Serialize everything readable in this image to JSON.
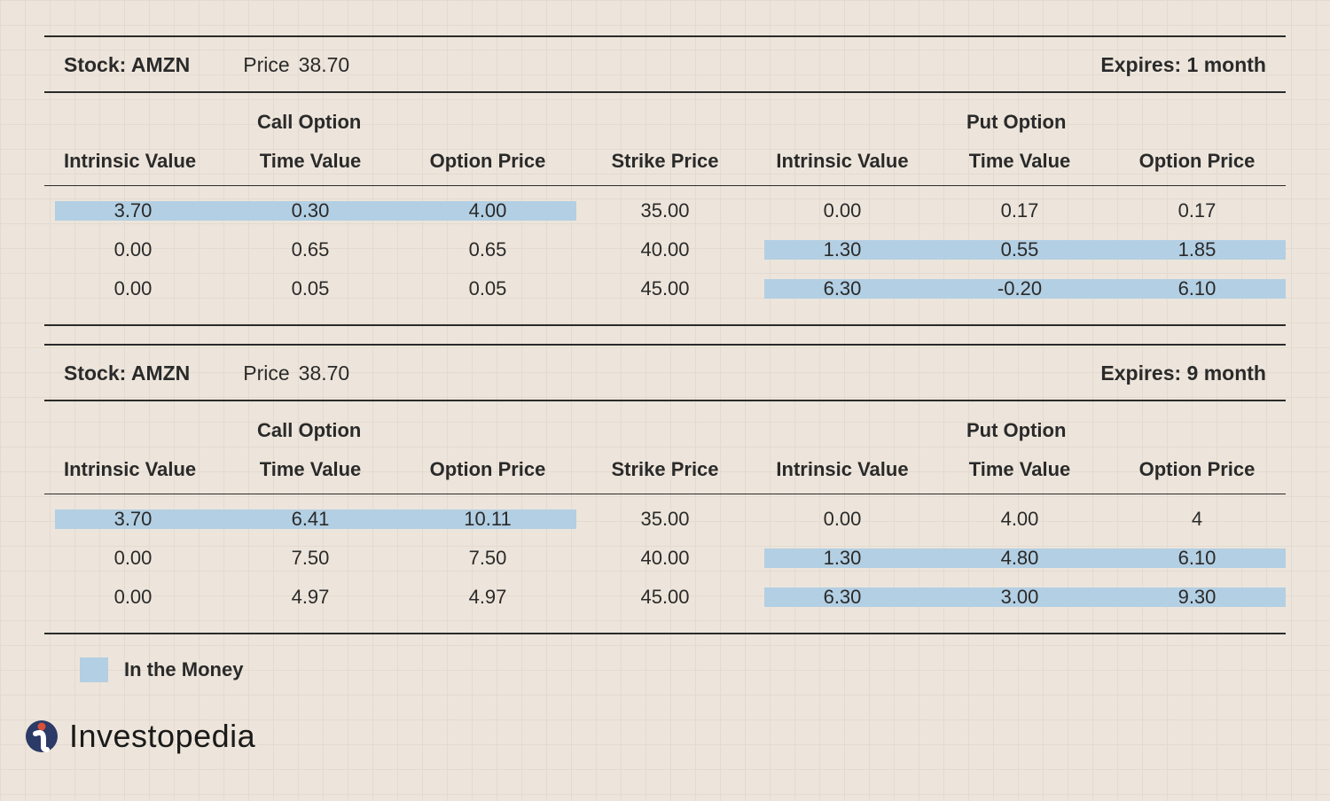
{
  "background_color": "#ede5db",
  "grid_color": "#e3dbd0",
  "highlight_color": "#b3cfe3",
  "text_color": "#2a2a2a",
  "rule_color": "#2a2a2a",
  "legend_label": "In the Money",
  "brand_name": "Investopedia",
  "brand_logo_bg": "#2b3a67",
  "brand_logo_accent": "#d94f3a",
  "columns": {
    "call_group": "Call Option",
    "put_group": "Put Option",
    "intrinsic": "Intrinsic Value",
    "time": "Time Value",
    "price": "Option Price",
    "strike": "Strike Price"
  },
  "tables": [
    {
      "stock_label": "Stock: AMZN",
      "price_label": "Price",
      "price_value": "38.70",
      "expires_label": "Expires: 1 month",
      "rows": [
        {
          "call_intrinsic": "3.70",
          "call_time": "0.30",
          "call_price": "4.00",
          "strike": "35.00",
          "put_intrinsic": "0.00",
          "put_time": "0.17",
          "put_price": "0.17",
          "call_itm": true,
          "put_itm": false
        },
        {
          "call_intrinsic": "0.00",
          "call_time": "0.65",
          "call_price": "0.65",
          "strike": "40.00",
          "put_intrinsic": "1.30",
          "put_time": "0.55",
          "put_price": "1.85",
          "call_itm": false,
          "put_itm": true
        },
        {
          "call_intrinsic": "0.00",
          "call_time": "0.05",
          "call_price": "0.05",
          "strike": "45.00",
          "put_intrinsic": "6.30",
          "put_time": "-0.20",
          "put_price": "6.10",
          "call_itm": false,
          "put_itm": true
        }
      ]
    },
    {
      "stock_label": "Stock: AMZN",
      "price_label": "Price",
      "price_value": "38.70",
      "expires_label": "Expires: 9 month",
      "rows": [
        {
          "call_intrinsic": "3.70",
          "call_time": "6.41",
          "call_price": "10.11",
          "strike": "35.00",
          "put_intrinsic": "0.00",
          "put_time": "4.00",
          "put_price": "4",
          "call_itm": true,
          "put_itm": false
        },
        {
          "call_intrinsic": "0.00",
          "call_time": "7.50",
          "call_price": "7.50",
          "strike": "40.00",
          "put_intrinsic": "1.30",
          "put_time": "4.80",
          "put_price": "6.10",
          "call_itm": false,
          "put_itm": true
        },
        {
          "call_intrinsic": "0.00",
          "call_time": "4.97",
          "call_price": "4.97",
          "strike": "45.00",
          "put_intrinsic": "6.30",
          "put_time": "3.00",
          "put_price": "9.30",
          "call_itm": false,
          "put_itm": true
        }
      ]
    }
  ]
}
